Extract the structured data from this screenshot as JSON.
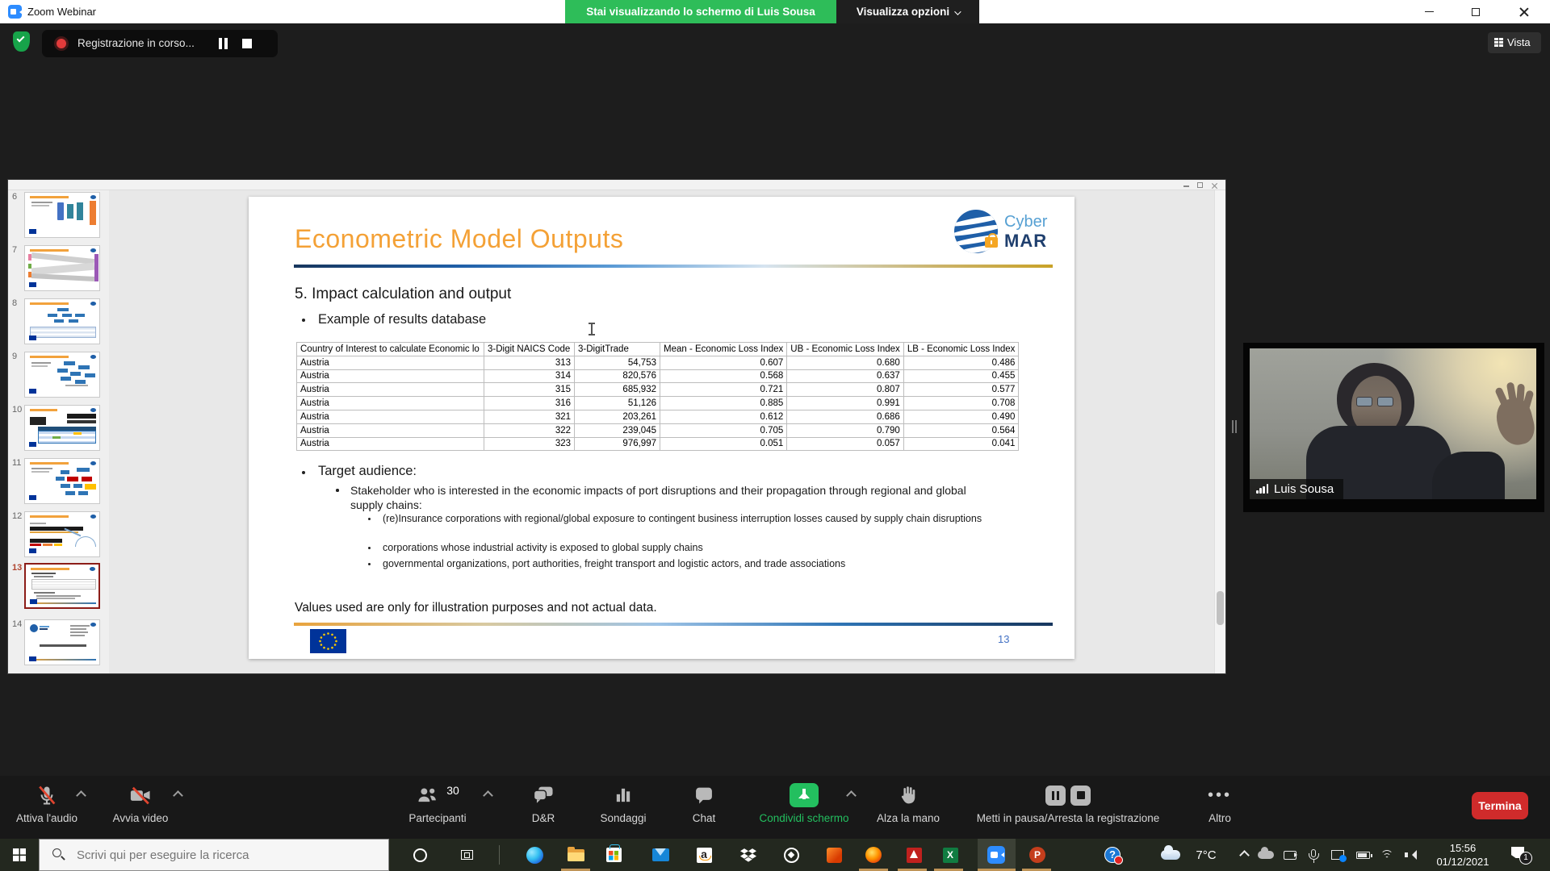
{
  "window": {
    "app_title": "Zoom Webinar",
    "share_banner": "Stai visualizzando lo schermo di Luis Sousa",
    "view_options_label": "Visualizza opzioni",
    "recording_status": "Registrazione in corso...",
    "view_button_label": "Vista"
  },
  "presentation": {
    "thumbnails": [
      {
        "number": "6"
      },
      {
        "number": "7"
      },
      {
        "number": "8"
      },
      {
        "number": "9"
      },
      {
        "number": "10"
      },
      {
        "number": "11"
      },
      {
        "number": "12"
      },
      {
        "number": "13",
        "selected": true
      },
      {
        "number": "14"
      }
    ],
    "slide": {
      "title": "Econometric Model Outputs",
      "logo_text_1": "Cyber",
      "logo_text_2": "MAR",
      "section_heading": "5. Impact calculation and output",
      "bullet_example": "Example of results database",
      "table": {
        "columns": [
          "Country of Interest to calculate Economic lo",
          "3-Digit NAICS Code",
          "3-DigitTrade",
          "Mean - Economic Loss Index",
          "UB - Economic Loss Index",
          "LB - Economic Loss Index"
        ],
        "rows": [
          [
            "Austria",
            "313",
            "54,753",
            "0.607",
            "0.680",
            "0.486"
          ],
          [
            "Austria",
            "314",
            "820,576",
            "0.568",
            "0.637",
            "0.455"
          ],
          [
            "Austria",
            "315",
            "685,932",
            "0.721",
            "0.807",
            "0.577"
          ],
          [
            "Austria",
            "316",
            "51,126",
            "0.885",
            "0.991",
            "0.708"
          ],
          [
            "Austria",
            "321",
            "203,261",
            "0.612",
            "0.686",
            "0.490"
          ],
          [
            "Austria",
            "322",
            "239,045",
            "0.705",
            "0.790",
            "0.564"
          ],
          [
            "Austria",
            "323",
            "976,997",
            "0.051",
            "0.057",
            "0.041"
          ]
        ]
      },
      "bullet_target": "Target audience:",
      "bullet_stakeholder": "Stakeholder who is interested in the economic impacts of port disruptions and their propagation through regional and global supply chains:",
      "sub_bullets": [
        "(re)Insurance corporations with regional/global exposure to contingent business interruption losses caused by supply chain disruptions",
        "corporations whose industrial activity is exposed to global supply chains",
        "governmental organizations, port authorities, freight transport and logistic actors, and trade associations"
      ],
      "note": "Values used are only for illustration purposes and not actual data.",
      "page_number": "13"
    }
  },
  "video": {
    "participant_name": "Luis Sousa"
  },
  "toolbar": {
    "mute_label": "Attiva l'audio",
    "video_label": "Avvia video",
    "participants_label": "Partecipanti",
    "participants_count": "30",
    "qa_label": "D&R",
    "polls_label": "Sondaggi",
    "chat_label": "Chat",
    "share_label": "Condividi schermo",
    "raise_hand_label": "Alza la mano",
    "recording_label": "Metti in pausa/Arresta la registrazione",
    "more_label": "Altro",
    "end_label": "Termina"
  },
  "taskbar": {
    "search_placeholder": "Scrivi qui per eseguire la ricerca",
    "weather": "7°C",
    "clock_time": "15:56",
    "clock_date": "01/12/2021",
    "notification_badge": "1",
    "amazon_letter": "a",
    "excel_letter": "X",
    "ppt_letter": "P",
    "help_mark": "?"
  },
  "icons": {
    "more_dots": "•••"
  },
  "colors": {
    "banner_green": "#2ebd59",
    "share_green": "#23bf5f",
    "end_red": "#d02b2b",
    "slide_accent_orange": "#f4a136",
    "page_number_blue": "#4472c4",
    "eu_flag_blue": "#003399",
    "eu_star_yellow": "#ffcc00",
    "taskbar_underline": "#bf9457"
  }
}
